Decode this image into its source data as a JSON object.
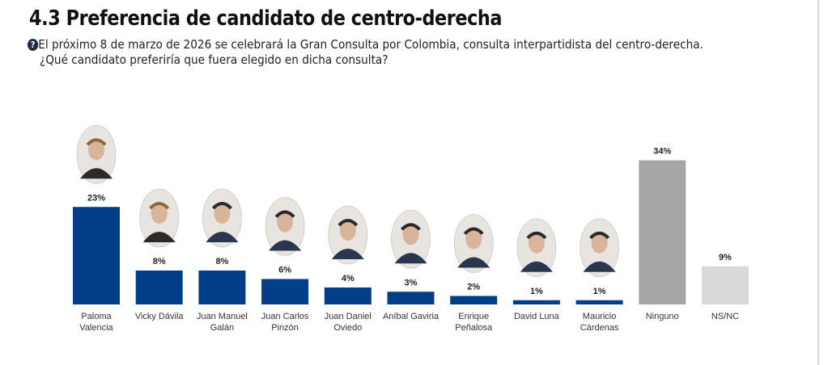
{
  "header": {
    "title": "4.3 Preferencia de candidato de centro-derecha",
    "question_icon": "question-circle-icon",
    "question_icon_glyph": "?",
    "question_line1": "El próximo 8 de marzo de 2026 se celebrará la Gran Consulta por Colombia, consulta interpartidista del centro-derecha.",
    "question_line2": "¿Qué candidato preferiría que fuera elegido en dicha consulta?"
  },
  "chart_data": {
    "type": "bar",
    "title": "4.3 Preferencia de candidato de centro-derecha",
    "xlabel": "",
    "ylabel": "",
    "ylim": [
      0,
      40
    ],
    "grid": false,
    "legend": "none",
    "categories": [
      [
        "Paloma",
        "Valencia"
      ],
      [
        "Vicky Dávila"
      ],
      [
        "Juan Manuel",
        "Galán"
      ],
      [
        "Juan Carlos",
        "Pinzón"
      ],
      [
        "Juan Daniel",
        "Oviedo"
      ],
      [
        "Aníbal Gaviria"
      ],
      [
        "Enrique",
        "Peñalosa"
      ],
      [
        "David Luna"
      ],
      [
        "Mauricio",
        "Cárdenas"
      ],
      [
        "Ninguno"
      ],
      [
        "NS/NC"
      ]
    ],
    "values": [
      23,
      8,
      8,
      6,
      4,
      3,
      2,
      1,
      1,
      34,
      9
    ],
    "value_labels": [
      "23%",
      "8%",
      "8%",
      "6%",
      "4%",
      "3%",
      "2%",
      "1%",
      "1%",
      "34%",
      "9%"
    ],
    "has_photo": [
      true,
      true,
      true,
      true,
      true,
      true,
      true,
      true,
      true,
      false,
      false
    ],
    "colors": [
      "#003f87",
      "#003f87",
      "#003f87",
      "#003f87",
      "#003f87",
      "#003f87",
      "#003f87",
      "#003f87",
      "#003f87",
      "#a6a6a6",
      "#d9d9d9"
    ]
  }
}
